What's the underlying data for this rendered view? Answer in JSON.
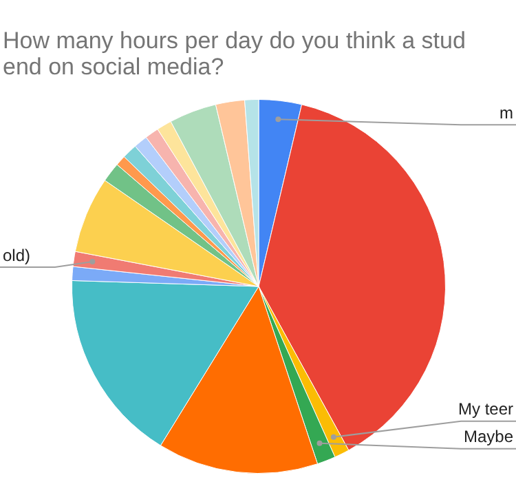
{
  "chart_data": {
    "type": "pie",
    "title": "How many hours per day do you think a stud\nend on social media?",
    "categories": [
      "m",
      null,
      "My teer",
      "Maybe",
      null,
      null,
      null,
      "old)",
      null,
      null,
      null,
      null,
      null,
      null,
      null,
      null,
      null,
      null
    ],
    "values": [
      3.7,
      38.3,
      1.3,
      1.6,
      13.9,
      16.7,
      1.2,
      1.3,
      6.6,
      1.7,
      0.9,
      1.3,
      1.2,
      1.2,
      1.3,
      4.1,
      2.5,
      1.2
    ],
    "colors": [
      "#4285f4",
      "#ea4335",
      "#fbbc04",
      "#34a853",
      "#ff6d01",
      "#46bdc6",
      "#7baaf7",
      "#f07b72",
      "#fcd04f",
      "#71c287",
      "#ff994d",
      "#7ed1d7",
      "#b3cefb",
      "#f7b4ae",
      "#fde49b",
      "#aedcba",
      "#ffc599",
      "#b5e3e8"
    ],
    "legend": false
  }
}
